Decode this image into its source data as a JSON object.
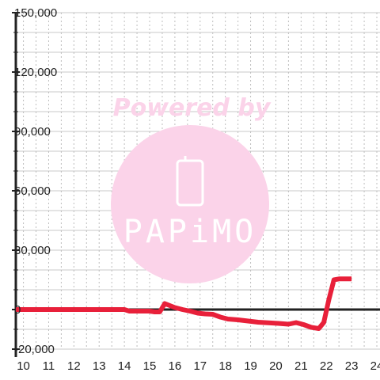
{
  "chart_data": {
    "type": "line",
    "title": "",
    "xlabel": "",
    "ylabel": "",
    "xlim": [
      10,
      24
    ],
    "ylim": [
      -20000,
      150000
    ],
    "x_ticks": [
      "10",
      "11",
      "12",
      "13",
      "14",
      "15",
      "16",
      "17",
      "18",
      "19",
      "20",
      "21",
      "22",
      "23",
      "24"
    ],
    "y_ticks": [
      {
        "value": 150000,
        "label": "150,000"
      },
      {
        "value": 120000,
        "label": "120,000"
      },
      {
        "value": 90000,
        "label": "90,000"
      },
      {
        "value": 60000,
        "label": "60,000"
      },
      {
        "value": 30000,
        "label": "30,000"
      },
      {
        "value": 0,
        "label": "0"
      },
      {
        "value": -20000,
        "label": "-20,000"
      }
    ],
    "grid": true,
    "legend": "none",
    "series": [
      {
        "color": "#e8203a",
        "x": [
          9.7,
          14.0,
          14.2,
          15.0,
          15.2,
          15.4,
          15.6,
          15.8,
          16.0,
          16.3,
          16.6,
          16.9,
          17.2,
          17.5,
          17.8,
          18.1,
          18.5,
          18.9,
          19.3,
          19.7,
          20.1,
          20.5,
          20.8,
          21.1,
          21.4,
          21.7,
          21.9,
          22.1,
          22.3,
          22.5,
          22.7,
          23.0
        ],
        "y": [
          0,
          0,
          -800,
          -800,
          -1200,
          -1200,
          3000,
          2000,
          1000,
          0,
          -800,
          -1800,
          -2200,
          -2400,
          -3800,
          -4800,
          -5200,
          -5800,
          -6400,
          -6700,
          -7000,
          -7400,
          -6600,
          -7600,
          -9000,
          -9600,
          -6500,
          5000,
          15000,
          15500,
          15500,
          15500
        ]
      }
    ],
    "watermark": {
      "caption": "Powered by",
      "brand": "PAPiMO",
      "color": "#fbd3e9"
    }
  }
}
